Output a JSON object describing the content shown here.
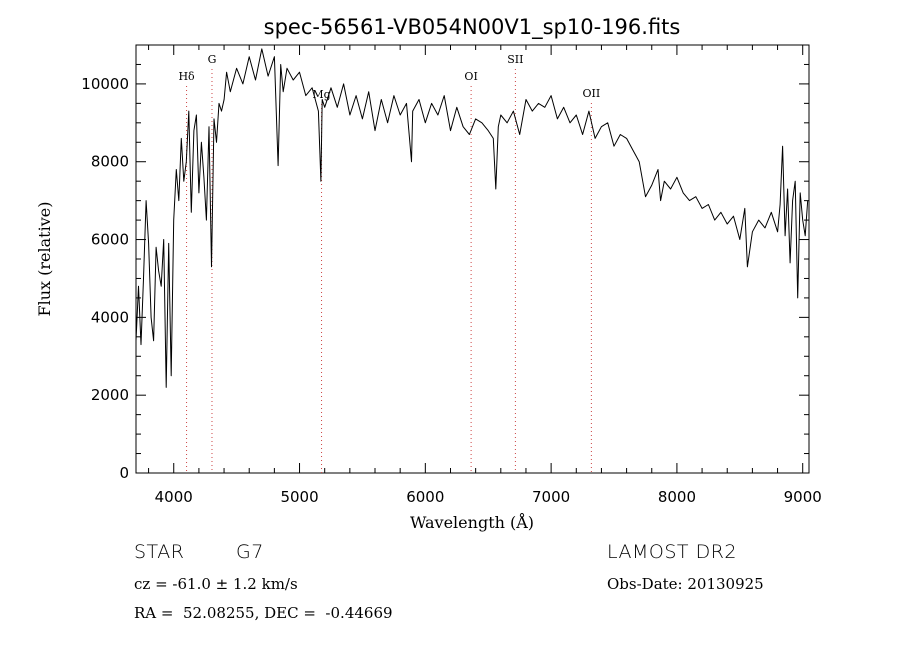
{
  "chart_data": {
    "type": "line",
    "title": "spec-56561-VB054N00V1_sp10-196.fits",
    "xlabel": "Wavelength (Å)",
    "ylabel": "Flux (relative)",
    "xlim": [
      3700,
      9050
    ],
    "ylim": [
      0,
      11000
    ],
    "x_ticks": [
      4000,
      5000,
      6000,
      7000,
      8000,
      9000
    ],
    "x_tick_labels": [
      "4000",
      "5000",
      "6000",
      "7000",
      "8000",
      "9000"
    ],
    "y_ticks": [
      0,
      2000,
      4000,
      6000,
      8000,
      10000
    ],
    "y_tick_labels": [
      "0",
      "2000",
      "4000",
      "6000",
      "8000",
      "10000"
    ],
    "grid": false,
    "series": [
      {
        "name": "spectrum",
        "x": [
          3700,
          3720,
          3740,
          3760,
          3780,
          3800,
          3820,
          3840,
          3860,
          3880,
          3900,
          3920,
          3940,
          3960,
          3980,
          4000,
          4020,
          4040,
          4060,
          4080,
          4100,
          4120,
          4140,
          4160,
          4180,
          4200,
          4220,
          4240,
          4260,
          4280,
          4300,
          4320,
          4340,
          4360,
          4380,
          4400,
          4420,
          4450,
          4500,
          4550,
          4600,
          4650,
          4700,
          4750,
          4800,
          4830,
          4850,
          4870,
          4900,
          4950,
          5000,
          5050,
          5100,
          5150,
          5170,
          5180,
          5200,
          5250,
          5300,
          5350,
          5400,
          5450,
          5500,
          5550,
          5600,
          5650,
          5700,
          5750,
          5800,
          5850,
          5890,
          5900,
          5950,
          6000,
          6050,
          6100,
          6150,
          6200,
          6250,
          6300,
          6350,
          6400,
          6450,
          6500,
          6540,
          6560,
          6580,
          6600,
          6650,
          6700,
          6750,
          6800,
          6850,
          6900,
          6950,
          7000,
          7050,
          7100,
          7150,
          7200,
          7250,
          7300,
          7350,
          7400,
          7450,
          7500,
          7550,
          7600,
          7650,
          7700,
          7750,
          7800,
          7850,
          7870,
          7900,
          7950,
          8000,
          8050,
          8100,
          8150,
          8200,
          8250,
          8300,
          8350,
          8400,
          8450,
          8500,
          8540,
          8560,
          8600,
          8650,
          8700,
          8750,
          8800,
          8820,
          8840,
          8860,
          8880,
          8900,
          8920,
          8940,
          8960,
          8980,
          9000,
          9020,
          9040
        ],
        "values": [
          3400,
          4800,
          3300,
          5000,
          7000,
          5900,
          4000,
          3400,
          5800,
          5200,
          4800,
          6000,
          2200,
          5900,
          2500,
          6500,
          7800,
          7000,
          8600,
          7500,
          8000,
          9300,
          6700,
          8800,
          9200,
          7200,
          8500,
          7600,
          6500,
          8900,
          5300,
          9100,
          8500,
          9500,
          9300,
          9600,
          10300,
          9800,
          10400,
          10000,
          10700,
          10100,
          10900,
          10200,
          10700,
          7900,
          10500,
          9800,
          10400,
          10100,
          10300,
          9700,
          9900,
          9300,
          7500,
          9600,
          9400,
          9900,
          9400,
          10000,
          9200,
          9700,
          9100,
          9800,
          8800,
          9600,
          9000,
          9700,
          9200,
          9500,
          8000,
          9300,
          9600,
          9000,
          9500,
          9200,
          9700,
          8800,
          9400,
          8900,
          8700,
          9100,
          9000,
          8800,
          8600,
          7300,
          8900,
          9200,
          9000,
          9300,
          8700,
          9600,
          9300,
          9500,
          9400,
          9700,
          9100,
          9400,
          9000,
          9200,
          8700,
          9300,
          8600,
          8900,
          9000,
          8400,
          8700,
          8600,
          8300,
          8000,
          7100,
          7400,
          7800,
          7000,
          7500,
          7300,
          7600,
          7200,
          7000,
          7100,
          6800,
          6900,
          6500,
          6700,
          6400,
          6600,
          6000,
          6800,
          5300,
          6200,
          6500,
          6300,
          6700,
          6200,
          6900,
          8400,
          6100,
          7300,
          5400,
          7000,
          7500,
          4500,
          7200,
          6500,
          6100,
          7000
        ]
      }
    ],
    "lines": [
      {
        "label": "Hδ",
        "x": 4102
      },
      {
        "label": "G",
        "x": 4304
      },
      {
        "label": "Mg",
        "x": 5175
      },
      {
        "label": "OI",
        "x": 6364
      },
      {
        "label": "SII",
        "x": 6716
      },
      {
        "label": "OII",
        "x": 7320
      }
    ]
  },
  "info": {
    "object": "STAR",
    "subclass": "G7",
    "survey": "LAMOST DR2",
    "redshift": "cz = -61.0 ± 1.2 km/s",
    "obs_date": "Obs-Date: 20130925",
    "coords": "RA =  52.08255, DEC =  -0.44669"
  }
}
